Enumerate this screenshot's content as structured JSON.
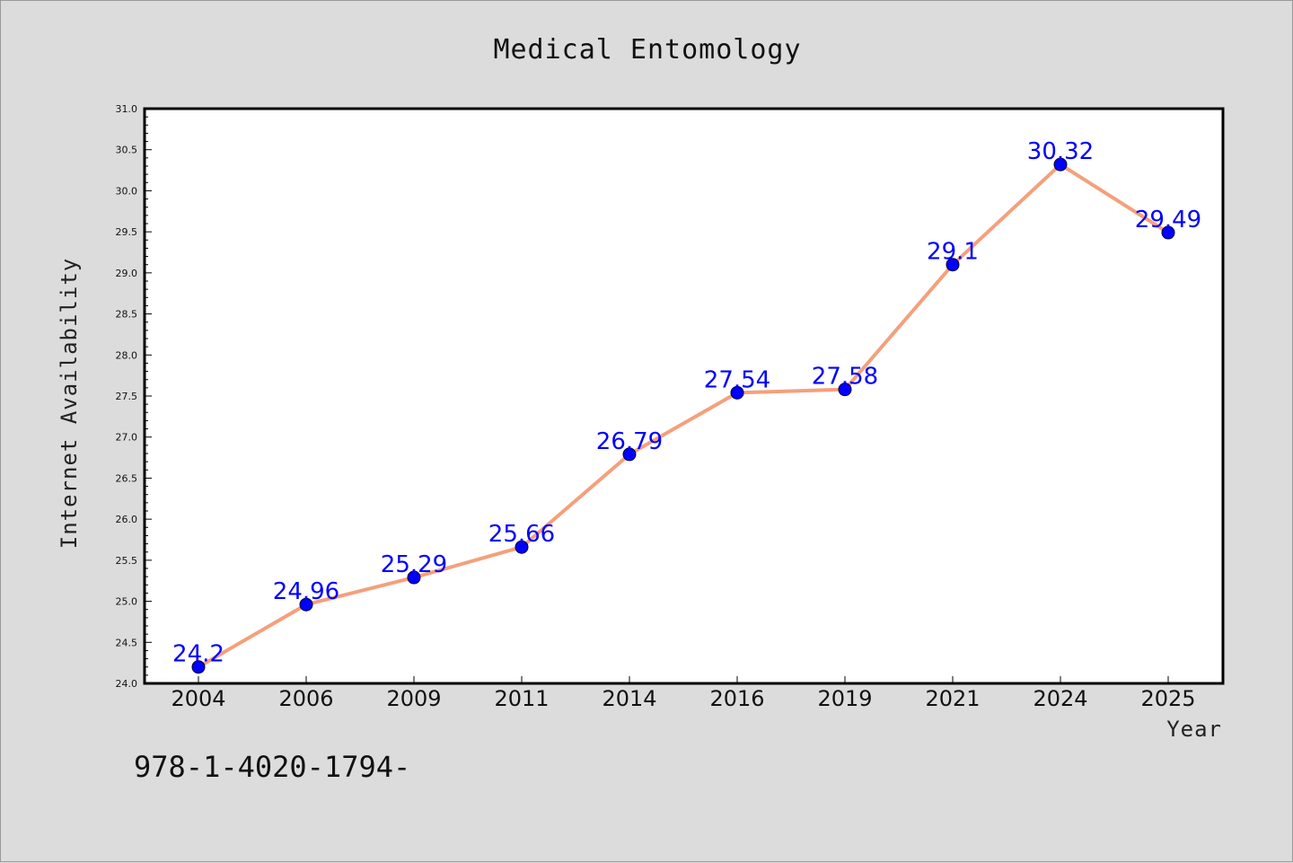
{
  "colors": {
    "background": "#dcdcdc",
    "plot_background": "#ffffff",
    "line": "#f4a07c",
    "marker": "#0000ff",
    "label": "#0000ff"
  },
  "footer_text": "978-1-4020-1794-",
  "chart_data": {
    "type": "line",
    "title": "Medical Entomology",
    "xlabel": "Year",
    "ylabel": "Internet Availability",
    "categories": [
      "2004",
      "2006",
      "2009",
      "2011",
      "2014",
      "2016",
      "2019",
      "2021",
      "2024",
      "2025"
    ],
    "series": [
      {
        "values": [
          24.2,
          24.96,
          25.29,
          25.66,
          26.79,
          27.54,
          27.58,
          29.1,
          30.32,
          29.49
        ],
        "labels": [
          "24.2",
          "24.96",
          "25.29",
          "25.66",
          "26.79",
          "27.54",
          "27.58",
          "29.1",
          "30.32",
          "29.49"
        ]
      }
    ],
    "ylim": [
      24.0,
      31.0
    ],
    "yticks": [
      "24.0",
      "24.5",
      "25.0",
      "25.5",
      "26.0",
      "26.5",
      "27.0",
      "27.5",
      "28.0",
      "28.5",
      "29.0",
      "29.5",
      "30.0",
      "30.5",
      "31.0"
    ],
    "grid": false,
    "legend": "none"
  }
}
